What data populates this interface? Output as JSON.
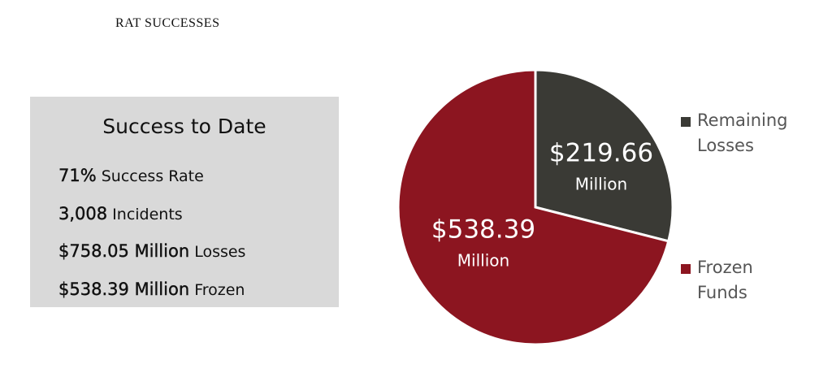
{
  "header": {
    "title": "RAT SUCCESSES"
  },
  "summary": {
    "title": "Success to Date",
    "items": [
      {
        "value": "71%",
        "label": "Success Rate"
      },
      {
        "value": "3,008",
        "label": "Incidents"
      },
      {
        "value": "$758.05 Million",
        "label": "Losses"
      },
      {
        "value": "$538.39 Million",
        "label": "Frozen"
      }
    ]
  },
  "chart_data": {
    "type": "pie",
    "categories": [
      "Remaining Losses",
      "Frozen Funds"
    ],
    "values": [
      219.66,
      538.39
    ],
    "value_labels": [
      "$219.66",
      "$538.39"
    ],
    "value_unit": "Million",
    "colors": [
      "#3a3a35",
      "#8c1520"
    ],
    "legend": "right"
  }
}
